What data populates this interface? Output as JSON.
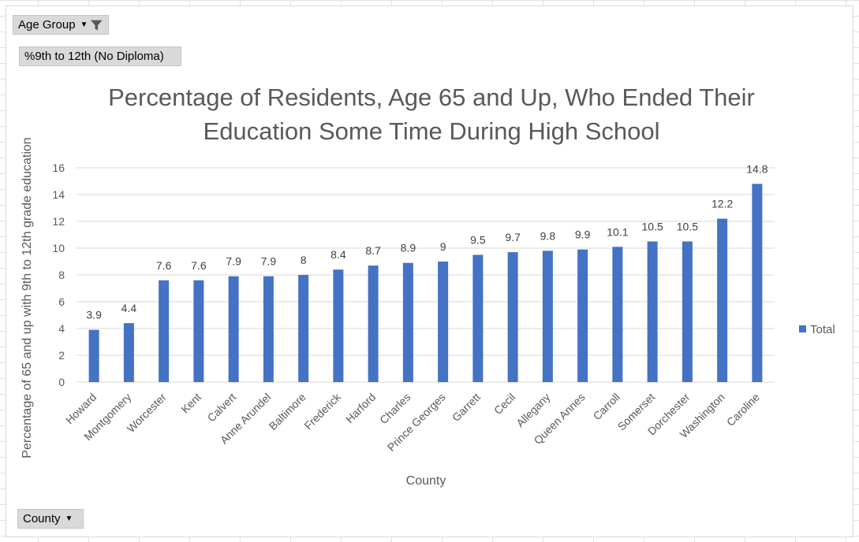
{
  "filters": {
    "age_group_label": "Age Group",
    "value_field_label": "%9th to 12th (No Diploma)",
    "axis_field_label": "County"
  },
  "colors": {
    "bar": "#4472c4",
    "gridline": "#d9d9d9",
    "text": "#595959"
  },
  "icons": {
    "filter": "funnel-filter-icon",
    "dropdown": "dropdown-arrow-icon"
  },
  "chart_data": {
    "type": "bar",
    "title": "Percentage of Residents, Age 65 and Up, Who Ended Their Education Some Time During High School",
    "title_lines": [
      "Percentage of Residents, Age 65 and Up, Who Ended Their",
      "Education Some Time During High School"
    ],
    "xlabel": "County",
    "ylabel": "Percentage of 65 and up with 9th to 12th grade education",
    "ylim": [
      0,
      16
    ],
    "yticks": [
      0,
      2,
      4,
      6,
      8,
      10,
      12,
      14,
      16
    ],
    "grid": true,
    "legend_position": "right",
    "categories": [
      "Howard",
      "Montgomery",
      "Worcester",
      "Kent",
      "Calvert",
      "Anne Arundel",
      "Baltimore",
      "Frederick",
      "Harford",
      "Charles",
      "Prince Georges",
      "Garrett",
      "Cecil",
      "Allegany",
      "Queen Annes",
      "Carroll",
      "Somerset",
      "Dorchester",
      "Washington",
      "Caroline"
    ],
    "series": [
      {
        "name": "Total",
        "values": [
          3.9,
          4.4,
          7.6,
          7.6,
          7.9,
          7.9,
          8,
          8.4,
          8.7,
          8.9,
          9,
          9.5,
          9.7,
          9.8,
          9.9,
          10.1,
          10.5,
          10.5,
          12.2,
          14.8
        ]
      }
    ]
  }
}
